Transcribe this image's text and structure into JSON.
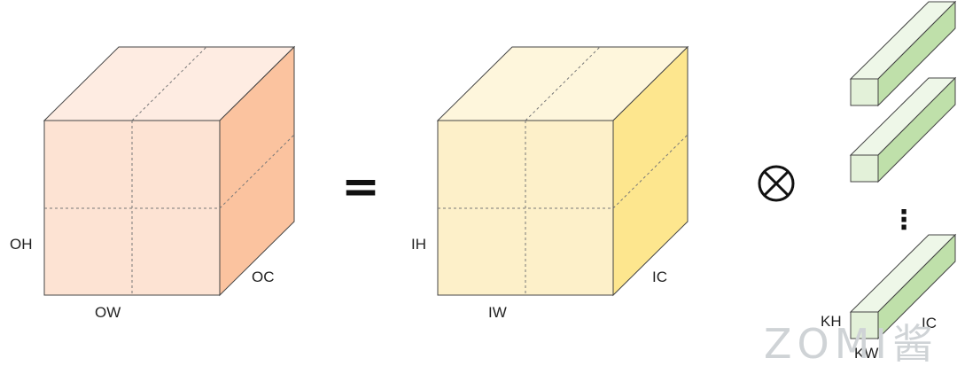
{
  "output_cube": {
    "label_height": "OH",
    "label_width": "OW",
    "label_channels": "OC",
    "colors": {
      "front": "#fde3d3",
      "top": "#feece2",
      "side": "#fbc39f"
    }
  },
  "equals_symbol": "=",
  "input_cube": {
    "label_height": "IH",
    "label_width": "IW",
    "label_channels": "IC",
    "colors": {
      "front": "#fdf0c9",
      "top": "#fef6dc",
      "side": "#fde68e"
    }
  },
  "operator_symbol": "⊗",
  "kernels": {
    "ellipsis": "⋮",
    "label_kh": "KH",
    "label_kw": "KW",
    "label_ic": "IC",
    "colors": {
      "front": "#e3f1d9",
      "top": "#eef7e8",
      "side": "#bfe0aa"
    }
  },
  "watermark": "ZOMI酱"
}
